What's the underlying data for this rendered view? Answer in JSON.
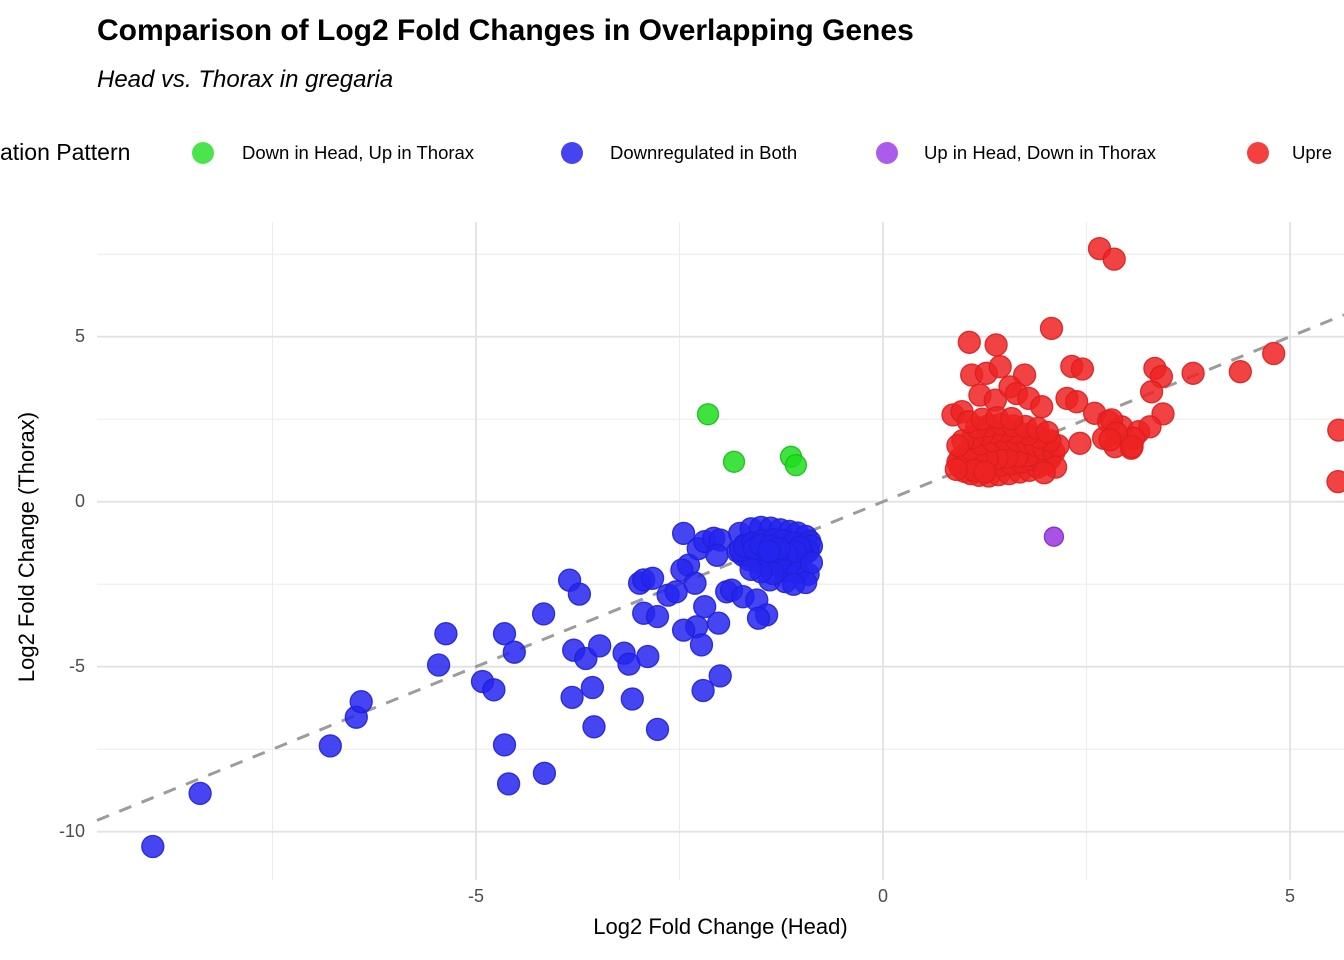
{
  "header": {
    "title": "Comparison of Log2 Fold Changes in Overlapping Genes",
    "subtitle": "Head vs. Thorax in gregaria"
  },
  "legend": {
    "title": "ation Pattern",
    "items": [
      {
        "label": "Down in Head, Up in Thorax",
        "color": "#4ce44c"
      },
      {
        "label": "Downregulated in Both",
        "color": "#4444f0"
      },
      {
        "label": "Up in Head, Down in Thorax",
        "color": "#ac5cec"
      },
      {
        "label": "Upre",
        "color": "#f54040"
      }
    ]
  },
  "axes": {
    "x": {
      "label": "Log2 Fold Change (Head)",
      "tick_labels": [
        "-5",
        "0",
        "5"
      ],
      "tick_values": [
        -5,
        0,
        5
      ]
    },
    "y": {
      "label": "Log2 Fold Change (Thorax)",
      "tick_labels": [
        "5",
        "0",
        "-5",
        "-10"
      ],
      "tick_values": [
        5,
        0,
        -5,
        -10
      ]
    }
  },
  "colors": {
    "green_fill": "#1fdd1f",
    "green_stroke": "#17bb17",
    "blue_fill": "#2525ee",
    "blue_stroke": "#2020d8",
    "purple_fill": "#9a35e0",
    "purple_stroke": "#8226c4",
    "red_fill": "#ee2222",
    "red_stroke": "#d81f1f",
    "grid_major": "#e2e2e2",
    "grid_minor": "#ececec",
    "reference_line": "#9c9c9c",
    "tick_text": "#4d4d4d"
  },
  "chart_data": {
    "type": "scatter",
    "title": "Comparison of Log2 Fold Changes in Overlapping Genes",
    "subtitle": "Head vs. Thorax in gregaria",
    "xlabel": "Log2 Fold Change (Head)",
    "ylabel": "Log2 Fold Change (Thorax)",
    "xlim": [
      -9.8,
      5.66
    ],
    "ylim": [
      -11.5,
      8.6
    ],
    "x_ticks": [
      -5,
      0,
      5
    ],
    "y_ticks": [
      5,
      0,
      -5,
      -10
    ],
    "x_minor_ticks": [
      -7.5,
      -2.5,
      2.5
    ],
    "y_minor_ticks": [
      7.5,
      2.5,
      -2.5,
      -7.5
    ],
    "grid": true,
    "legend_position": "top",
    "reference_line": {
      "type": "identity y=x",
      "style": "dashed",
      "color": "#9c9c9c"
    },
    "series": [
      {
        "name": "Downregulated in Both",
        "color": "#2525ee",
        "stroke": "#2020d8",
        "radius": 11,
        "points": [
          [
            -8.97,
            -10.45
          ],
          [
            -8.39,
            -8.84
          ],
          [
            -6.79,
            -7.4
          ],
          [
            -6.47,
            -6.53
          ],
          [
            -6.41,
            -6.06
          ],
          [
            -5.46,
            -4.95
          ],
          [
            -5.37,
            -4.0
          ],
          [
            -4.92,
            -5.45
          ],
          [
            -4.78,
            -5.7
          ],
          [
            -4.65,
            -7.37
          ],
          [
            -4.6,
            -8.55
          ],
          [
            -4.16,
            -8.23
          ],
          [
            -4.65,
            -4.0
          ],
          [
            -4.53,
            -4.56
          ],
          [
            -4.17,
            -3.4
          ],
          [
            -3.85,
            -2.38
          ],
          [
            -3.73,
            -2.8
          ],
          [
            -3.8,
            -4.5
          ],
          [
            -3.65,
            -4.75
          ],
          [
            -3.48,
            -4.37
          ],
          [
            -3.82,
            -5.93
          ],
          [
            -3.57,
            -5.63
          ],
          [
            -3.55,
            -6.82
          ],
          [
            -3.18,
            -4.59
          ],
          [
            -3.12,
            -4.92
          ],
          [
            -3.08,
            -5.98
          ],
          [
            -2.89,
            -4.69
          ],
          [
            -2.77,
            -6.9
          ],
          [
            -2.99,
            -2.47
          ],
          [
            -2.94,
            -2.37
          ],
          [
            -2.83,
            -2.32
          ],
          [
            -2.94,
            -3.38
          ],
          [
            -2.77,
            -3.48
          ],
          [
            -2.64,
            -2.83
          ],
          [
            -2.54,
            -2.73
          ],
          [
            -2.45,
            -0.96
          ],
          [
            -2.39,
            -1.92
          ],
          [
            -2.27,
            -1.42
          ],
          [
            -2.19,
            -1.21
          ],
          [
            -2.08,
            -1.11
          ],
          [
            -2.0,
            -1.16
          ],
          [
            -2.29,
            -3.79
          ],
          [
            -2.45,
            -3.89
          ],
          [
            -2.23,
            -4.34
          ],
          [
            -2.19,
            -3.18
          ],
          [
            -2.02,
            -3.68
          ],
          [
            -1.92,
            -2.73
          ],
          [
            -2.21,
            -5.72
          ],
          [
            -2.0,
            -5.28
          ],
          [
            -2.47,
            -2.07
          ],
          [
            -2.31,
            -2.47
          ],
          [
            -2.04,
            -1.62
          ],
          [
            -1.76,
            -0.96
          ],
          [
            -1.7,
            -1.31
          ],
          [
            -1.78,
            -1.51
          ],
          [
            -1.86,
            -2.68
          ],
          [
            -1.72,
            -2.88
          ],
          [
            -1.55,
            -2.98
          ],
          [
            -1.39,
            -2.37
          ],
          [
            -1.2,
            -2.42
          ],
          [
            -1.43,
            -3.43
          ],
          [
            -1.53,
            -3.53
          ],
          [
            -1.62,
            -0.82
          ],
          [
            -1.5,
            -0.78
          ],
          [
            -1.38,
            -0.8
          ],
          [
            -1.26,
            -0.85
          ],
          [
            -1.15,
            -0.9
          ],
          [
            -1.05,
            -0.95
          ],
          [
            -0.95,
            -1.05
          ],
          [
            -0.9,
            -1.2
          ],
          [
            -0.88,
            -1.35
          ],
          [
            -0.92,
            -1.5
          ],
          [
            -0.98,
            -1.62
          ],
          [
            -1.05,
            -1.72
          ],
          [
            -1.12,
            -1.8
          ],
          [
            -1.22,
            -1.85
          ],
          [
            -1.32,
            -1.9
          ],
          [
            -1.45,
            -1.88
          ],
          [
            -1.55,
            -1.82
          ],
          [
            -1.65,
            -1.75
          ],
          [
            -1.72,
            -1.62
          ],
          [
            -1.75,
            -1.48
          ],
          [
            -1.7,
            -1.35
          ],
          [
            -1.6,
            -1.25
          ],
          [
            -1.48,
            -1.18
          ],
          [
            -1.35,
            -1.15
          ],
          [
            -1.22,
            -1.18
          ],
          [
            -1.1,
            -1.25
          ],
          [
            -1.02,
            -1.38
          ],
          [
            -1.08,
            -1.52
          ],
          [
            -1.18,
            -1.6
          ],
          [
            -1.3,
            -1.65
          ],
          [
            -1.42,
            -1.62
          ],
          [
            -1.52,
            -1.55
          ],
          [
            -1.58,
            -1.42
          ],
          [
            -1.5,
            -1.32
          ],
          [
            -1.38,
            -1.35
          ],
          [
            -1.28,
            -1.42
          ],
          [
            -1.4,
            -1.5
          ],
          [
            -1.2,
            -2.1
          ],
          [
            -1.05,
            -2.15
          ],
          [
            -0.92,
            -2.2
          ],
          [
            -1.35,
            -2.18
          ],
          [
            -1.5,
            -2.12
          ],
          [
            -1.62,
            -2.05
          ],
          [
            -0.88,
            -1.85
          ],
          [
            -0.95,
            -2.45
          ],
          [
            -1.1,
            -2.5
          ]
        ]
      },
      {
        "name": "Down in Head, Up in Thorax",
        "color": "#1fdd1f",
        "stroke": "#17bb17",
        "radius": 10.5,
        "points": [
          [
            -2.15,
            2.65
          ],
          [
            -1.83,
            1.21
          ],
          [
            -1.13,
            1.36
          ],
          [
            -1.07,
            1.11
          ]
        ]
      },
      {
        "name": "Up in Head, Down in Thorax",
        "color": "#9a35e0",
        "stroke": "#8226c4",
        "radius": 9.5,
        "points": [
          [
            2.1,
            -1.06
          ]
        ]
      },
      {
        "name": "Upregulated (shown truncated as 'Upre')",
        "color": "#ee2222",
        "stroke": "#d81f1f",
        "radius": 11,
        "points": [
          [
            2.66,
            7.67
          ],
          [
            2.84,
            7.35
          ],
          [
            2.07,
            5.25
          ],
          [
            1.06,
            4.83
          ],
          [
            1.39,
            4.75
          ],
          [
            0.86,
            2.63
          ],
          [
            0.97,
            2.73
          ],
          [
            1.09,
            3.84
          ],
          [
            1.27,
            3.89
          ],
          [
            1.44,
            4.09
          ],
          [
            1.74,
            3.84
          ],
          [
            2.32,
            4.1
          ],
          [
            2.45,
            4.02
          ],
          [
            1.19,
            3.23
          ],
          [
            1.38,
            3.08
          ],
          [
            1.56,
            3.48
          ],
          [
            1.64,
            3.28
          ],
          [
            1.79,
            3.13
          ],
          [
            1.95,
            2.88
          ],
          [
            2.26,
            3.13
          ],
          [
            2.38,
            3.03
          ],
          [
            2.6,
            2.68
          ],
          [
            2.77,
            2.42
          ],
          [
            2.93,
            2.27
          ],
          [
            3.14,
            2.12
          ],
          [
            3.05,
            1.62
          ],
          [
            2.85,
            1.67
          ],
          [
            2.71,
            1.92
          ],
          [
            2.42,
            1.77
          ],
          [
            3.34,
            4.04
          ],
          [
            3.42,
            3.79
          ],
          [
            3.3,
            3.33
          ],
          [
            3.81,
            3.89
          ],
          [
            4.39,
            3.94
          ],
          [
            4.8,
            4.49
          ],
          [
            3.44,
            2.66
          ],
          [
            3.28,
            2.27
          ],
          [
            3.08,
            1.92
          ],
          [
            2.81,
            2.48
          ],
          [
            2.87,
            2.08
          ],
          [
            2.79,
            1.88
          ],
          [
            3.06,
            1.67
          ],
          [
            5.6,
            2.17
          ],
          [
            5.59,
            0.61
          ],
          [
            0.95,
            1.05
          ],
          [
            1.0,
            0.92
          ],
          [
            1.08,
            0.85
          ],
          [
            1.18,
            0.8
          ],
          [
            1.3,
            0.78
          ],
          [
            1.42,
            0.82
          ],
          [
            1.55,
            0.85
          ],
          [
            1.68,
            0.9
          ],
          [
            1.8,
            0.95
          ],
          [
            1.9,
            1.05
          ],
          [
            2.0,
            1.15
          ],
          [
            2.05,
            1.3
          ],
          [
            1.95,
            1.42
          ],
          [
            1.85,
            1.5
          ],
          [
            1.75,
            1.55
          ],
          [
            1.62,
            1.58
          ],
          [
            1.5,
            1.6
          ],
          [
            1.38,
            1.62
          ],
          [
            1.25,
            1.58
          ],
          [
            1.12,
            1.52
          ],
          [
            1.02,
            1.45
          ],
          [
            0.95,
            1.32
          ],
          [
            0.92,
            1.2
          ],
          [
            1.05,
            1.18
          ],
          [
            1.18,
            1.12
          ],
          [
            1.32,
            1.08
          ],
          [
            1.45,
            1.1
          ],
          [
            1.58,
            1.15
          ],
          [
            1.7,
            1.2
          ],
          [
            1.82,
            1.28
          ],
          [
            1.9,
            1.35
          ],
          [
            1.78,
            1.4
          ],
          [
            1.65,
            1.38
          ],
          [
            1.52,
            1.35
          ],
          [
            1.4,
            1.32
          ],
          [
            1.28,
            1.3
          ],
          [
            1.15,
            1.35
          ],
          [
            1.08,
            1.6
          ],
          [
            1.2,
            1.75
          ],
          [
            1.35,
            1.85
          ],
          [
            1.5,
            1.9
          ],
          [
            1.65,
            1.85
          ],
          [
            1.78,
            1.78
          ],
          [
            1.88,
            1.7
          ],
          [
            1.98,
            1.6
          ],
          [
            2.1,
            1.5
          ],
          [
            2.15,
            1.7
          ],
          [
            2.05,
            1.85
          ],
          [
            1.92,
            1.95
          ],
          [
            1.78,
            2.05
          ],
          [
            1.62,
            2.1
          ],
          [
            1.48,
            2.15
          ],
          [
            1.35,
            2.1
          ],
          [
            1.22,
            2.05
          ],
          [
            1.1,
            1.95
          ],
          [
            0.98,
            1.85
          ],
          [
            0.92,
            1.7
          ],
          [
            1.3,
            2.3
          ],
          [
            1.45,
            2.35
          ],
          [
            1.6,
            2.3
          ],
          [
            1.75,
            2.28
          ],
          [
            1.9,
            2.22
          ],
          [
            2.02,
            2.1
          ],
          [
            1.15,
            2.25
          ],
          [
            1.05,
            2.42
          ],
          [
            1.22,
            2.5
          ],
          [
            1.4,
            2.55
          ],
          [
            1.58,
            2.52
          ],
          [
            1.12,
            0.95
          ],
          [
            1.25,
            0.9
          ],
          [
            0.9,
            0.98
          ],
          [
            2.12,
            1.05
          ],
          [
            1.98,
            0.88
          ]
        ]
      }
    ]
  }
}
